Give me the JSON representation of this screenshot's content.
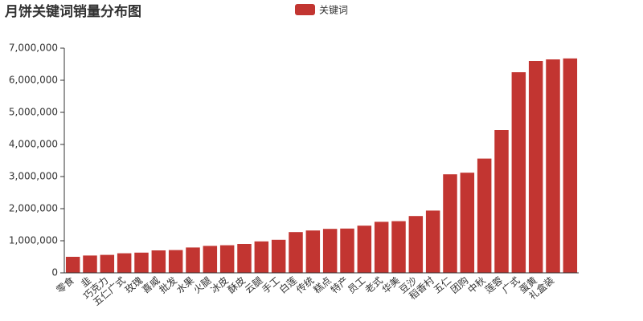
{
  "chart_data": {
    "type": "bar",
    "title": "月饼关键词销量分布图",
    "series": [
      {
        "name": "关键词",
        "color": "#c23531",
        "values": [
          500000,
          540000,
          560000,
          610000,
          630000,
          700000,
          710000,
          790000,
          840000,
          860000,
          900000,
          980000,
          1030000,
          1270000,
          1320000,
          1370000,
          1380000,
          1470000,
          1590000,
          1610000,
          1770000,
          1940000,
          3070000,
          3120000,
          3560000,
          4450000,
          6250000,
          6600000,
          6650000,
          6680000
        ]
      }
    ],
    "categories": [
      "零食",
      "韭",
      "巧克力",
      "五仁广式",
      "玫瑰",
      "喜威",
      "批发",
      "水果",
      "火腿",
      "冰皮",
      "酥皮",
      "云腿",
      "手工",
      "白莲",
      "传统",
      "糕点",
      "特产",
      "员工",
      "老式",
      "华美",
      "豆沙",
      "稻香村",
      "五仁",
      "团购",
      "中秋",
      "莲蓉",
      "广式",
      "蛋黄",
      "礼盒装",
      null
    ],
    "ylim": [
      0,
      7000000
    ],
    "yticks": [
      0,
      {
        "value": 1000000,
        "label": "1,000,000"
      },
      {
        "value": 2000000,
        "label": "2,000,000"
      },
      {
        "value": 3000000,
        "label": "3,000,000"
      },
      {
        "value": 4000000,
        "label": "4,000,000"
      },
      {
        "value": 5000000,
        "label": "5,000,000"
      },
      {
        "value": 6000000,
        "label": "6,000,000"
      },
      {
        "value": 7000000,
        "label": "7,000,000"
      }
    ],
    "grid": false
  }
}
